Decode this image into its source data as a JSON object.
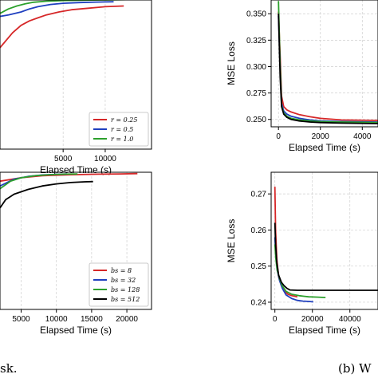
{
  "chart_data": [
    {
      "type": "line",
      "xlabel": "Elapsed Time (s)",
      "ylabel": "",
      "xticks": [
        "5000",
        "10000"
      ],
      "xlim": [
        -2500,
        15500
      ],
      "ylim": [
        0,
        10
      ],
      "grid": true,
      "legend_placement": "lower-right",
      "series": [
        {
          "name": "r = 0.25",
          "color": "#d62728",
          "x": [
            -2500,
            -1000,
            0,
            1000,
            2000,
            3000,
            4500,
            6000,
            8000,
            10000,
            12200
          ],
          "y": [
            6.8,
            7.8,
            8.3,
            8.6,
            8.8,
            9.0,
            9.2,
            9.35,
            9.45,
            9.55,
            9.6
          ]
        },
        {
          "name": "r = 0.5",
          "color": "#1f3fbf",
          "x": [
            -2500,
            -1500,
            0,
            1000,
            2000,
            3500,
            5000,
            7000,
            9000,
            11000
          ],
          "y": [
            8.9,
            9.0,
            9.2,
            9.4,
            9.55,
            9.7,
            9.78,
            9.83,
            9.86,
            9.88
          ]
        },
        {
          "name": "r = 1.0",
          "color": "#2ca02c",
          "x": [
            -2500,
            -1500,
            -500,
            500,
            1500,
            3000,
            5000,
            7500,
            10000,
            12500,
            15500
          ],
          "y": [
            9.1,
            9.4,
            9.6,
            9.75,
            9.85,
            9.92,
            9.96,
            9.99,
            10.0,
            10.02,
            10.02
          ]
        }
      ]
    },
    {
      "type": "line",
      "xlabel": "Elapsed Time (s)",
      "ylabel": "MSE Loss",
      "yticks": [
        "0.250",
        "0.275",
        "0.300",
        "0.325",
        "0.350"
      ],
      "xticks": [
        "0",
        "2000",
        "4000"
      ],
      "xlim": [
        -350,
        4750
      ],
      "ylim": [
        0.243,
        0.363
      ],
      "grid": true,
      "series": [
        {
          "color": "#d62728",
          "x": [
            0,
            80,
            150,
            250,
            400,
            600,
            1000,
            1500,
            2000,
            3000,
            4750
          ],
          "y": [
            0.352,
            0.31,
            0.272,
            0.262,
            0.259,
            0.257,
            0.2545,
            0.2525,
            0.251,
            0.2495,
            0.249
          ]
        },
        {
          "color": "#1f3fbf",
          "x": [
            0,
            80,
            150,
            250,
            400,
            600,
            1000,
            1500,
            2000,
            3000,
            4750
          ],
          "y": [
            0.348,
            0.3,
            0.265,
            0.258,
            0.255,
            0.253,
            0.251,
            0.2495,
            0.2485,
            0.248,
            0.2475
          ]
        },
        {
          "color": "#2ca02c",
          "x": [
            0,
            80,
            150,
            250,
            400,
            600,
            1000,
            1500,
            2000,
            3000,
            4750
          ],
          "y": [
            0.362,
            0.3,
            0.263,
            0.256,
            0.253,
            0.251,
            0.2495,
            0.2485,
            0.248,
            0.2475,
            0.247
          ]
        },
        {
          "color": "#000000",
          "x": [
            0,
            80,
            150,
            250,
            400,
            600,
            1000,
            1500,
            2000,
            3000,
            4750
          ],
          "y": [
            0.35,
            0.29,
            0.262,
            0.255,
            0.252,
            0.25,
            0.2485,
            0.2475,
            0.247,
            0.2465,
            0.246
          ]
        }
      ]
    },
    {
      "type": "line",
      "xlabel": "Elapsed Time (s)",
      "ylabel": "",
      "xticks": [
        "5000",
        "10000",
        "15000",
        "20000"
      ],
      "xlim": [
        2000,
        23500
      ],
      "ylim": [
        0,
        10
      ],
      "grid": true,
      "legend_placement": "lower-right",
      "series": [
        {
          "name": "bs = 8",
          "color": "#d62728",
          "x": [
            2000,
            5000,
            8000,
            12000,
            16000,
            19000,
            21500
          ],
          "y": [
            9.35,
            9.6,
            9.75,
            9.82,
            9.86,
            9.88,
            9.9
          ]
        },
        {
          "name": "bs = 32",
          "color": "#1f3fbf",
          "x": [
            2000,
            4000,
            6000,
            8000,
            10000,
            11500
          ],
          "y": [
            9.0,
            9.5,
            9.7,
            9.8,
            9.85,
            9.87
          ]
        },
        {
          "name": "bs = 128",
          "color": "#2ca02c",
          "x": [
            2000,
            3500,
            5000,
            7000,
            9000,
            11000,
            13000
          ],
          "y": [
            8.8,
            9.35,
            9.6,
            9.75,
            9.82,
            9.86,
            9.88
          ]
        },
        {
          "name": "bs = 512",
          "color": "#000000",
          "x": [
            2000,
            2800,
            4000,
            6000,
            8000,
            10000,
            12000,
            14000,
            15200
          ],
          "y": [
            7.4,
            8.0,
            8.4,
            8.75,
            9.0,
            9.15,
            9.25,
            9.3,
            9.32
          ]
        }
      ]
    },
    {
      "type": "line",
      "xlabel": "Elapsed Time (s)",
      "ylabel": "MSE Loss",
      "yticks": [
        "0.24",
        "0.25",
        "0.26",
        "0.27"
      ],
      "xticks": [
        "0",
        "20000",
        "40000"
      ],
      "xlim": [
        -2000,
        55000
      ],
      "ylim": [
        0.238,
        0.276
      ],
      "grid": true,
      "series": [
        {
          "color": "#d62728",
          "x": [
            0,
            400,
            1000,
            2000,
            3500,
            5000,
            7000,
            9000,
            12000
          ],
          "y": [
            0.272,
            0.26,
            0.252,
            0.247,
            0.2445,
            0.243,
            0.2422,
            0.2418,
            0.2415
          ]
        },
        {
          "color": "#1f3fbf",
          "x": [
            0,
            500,
            1200,
            2500,
            4000,
            6000,
            9000,
            12000,
            15000,
            18000,
            20500
          ],
          "y": [
            0.258,
            0.253,
            0.249,
            0.246,
            0.2438,
            0.242,
            0.241,
            0.2405,
            0.2403,
            0.2402,
            0.2401
          ]
        },
        {
          "color": "#2ca02c",
          "x": [
            0,
            500,
            1200,
            2500,
            4000,
            6000,
            9000,
            13000,
            18000,
            23000,
            27000
          ],
          "y": [
            0.256,
            0.252,
            0.249,
            0.2465,
            0.2445,
            0.243,
            0.2422,
            0.2418,
            0.2415,
            0.2414,
            0.2413
          ]
        },
        {
          "color": "#000000",
          "x": [
            0,
            400,
            1000,
            2000,
            3500,
            5000,
            6500,
            8000,
            12000,
            20000,
            35000,
            55000
          ],
          "y": [
            0.262,
            0.256,
            0.251,
            0.2475,
            0.2455,
            0.2445,
            0.2438,
            0.2434,
            0.2433,
            0.2433,
            0.2433,
            0.2433
          ]
        }
      ]
    }
  ],
  "captions": {
    "left": "sk.",
    "right": "(b) W"
  }
}
